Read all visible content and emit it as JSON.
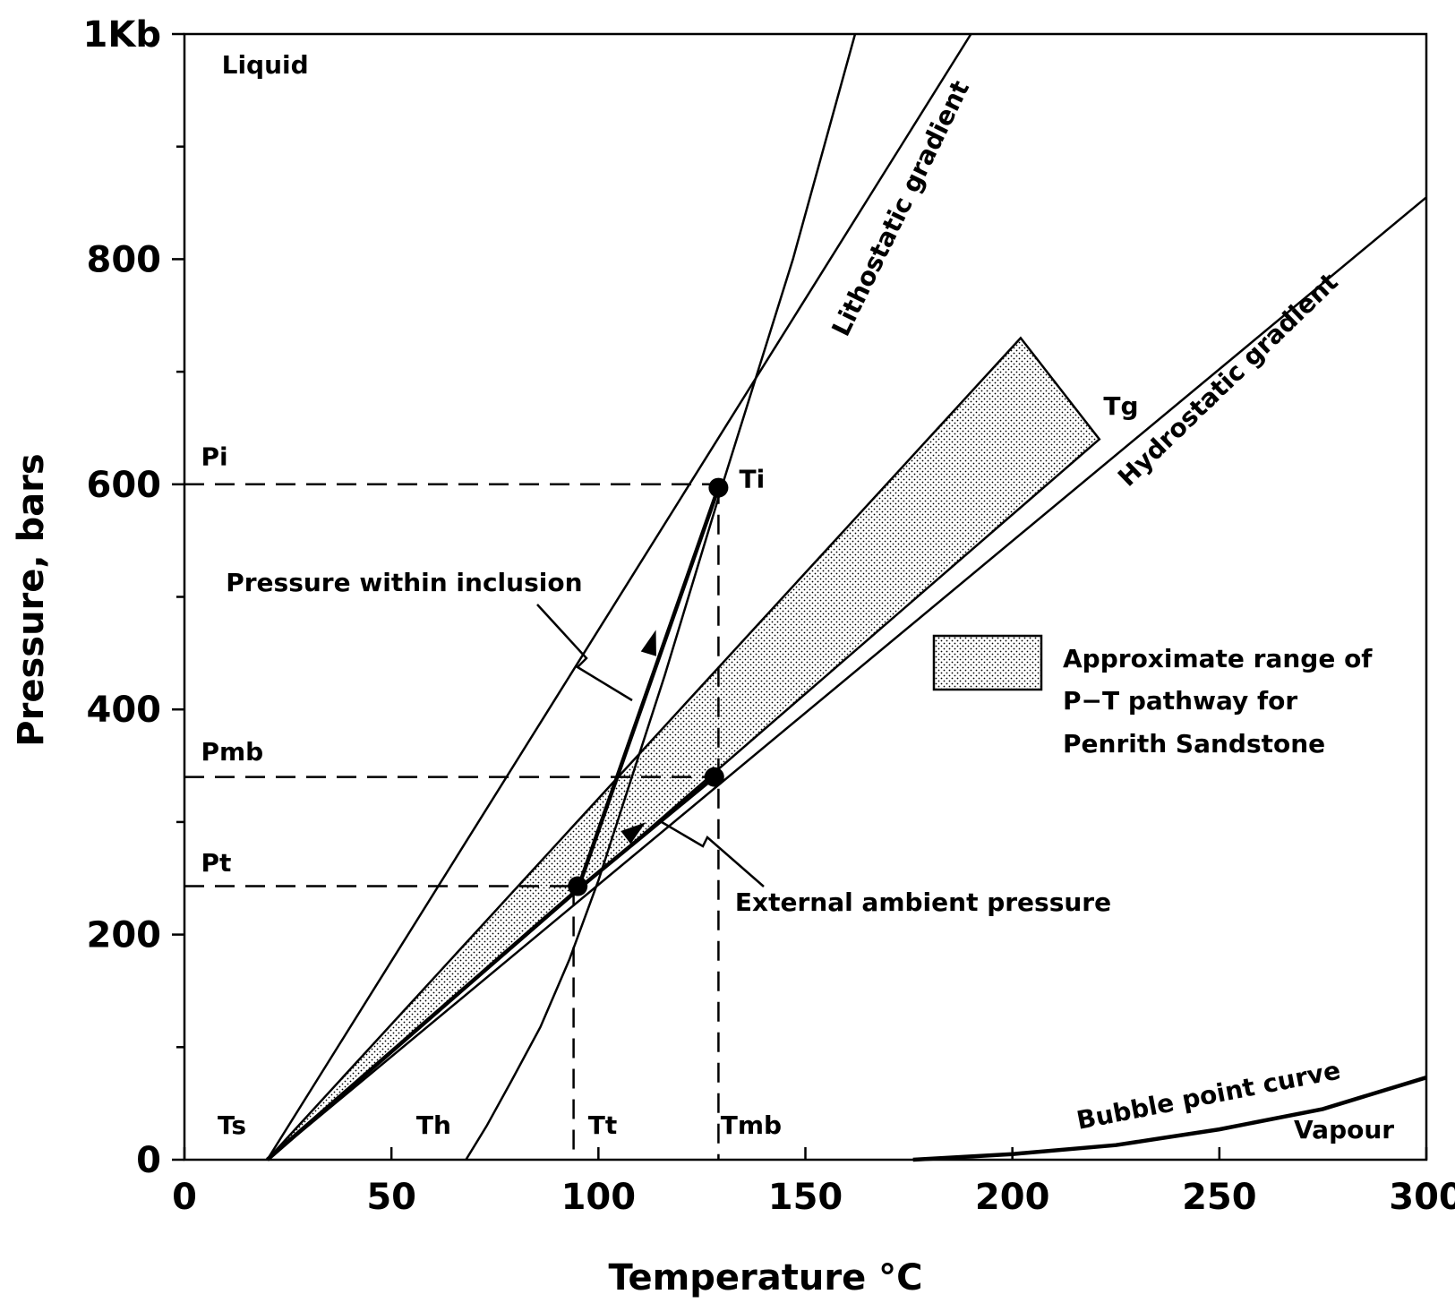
{
  "chart_data": {
    "type": "line",
    "xlabel": "Temperature",
    "xlabel_unit": "°C",
    "ylabel": "Pressure, bars",
    "xlim": [
      0,
      300
    ],
    "ylim": [
      0,
      1000
    ],
    "x_ticks": [
      0,
      50,
      100,
      150,
      200,
      250,
      300
    ],
    "x_tick_labels": [
      "0",
      "50",
      "100",
      "150",
      "200",
      "250",
      "300"
    ],
    "y_ticks": [
      0,
      200,
      400,
      600,
      800,
      1000
    ],
    "y_tick_labels": [
      "0",
      "200",
      "400",
      "600",
      "800",
      "1Kb"
    ],
    "y_minor_ticks": [
      100,
      300,
      500,
      700,
      900
    ],
    "grid": false,
    "series": [
      {
        "name": "Lithostatic gradient",
        "style": "thin",
        "points": [
          [
            20,
            0
          ],
          [
            190,
            1000
          ]
        ]
      },
      {
        "name": "Hydrostatic gradient",
        "style": "thin",
        "points": [
          [
            20,
            0
          ],
          [
            300,
            855
          ]
        ]
      },
      {
        "name": "",
        "style": "thin",
        "points": [
          [
            68,
            0
          ],
          [
            73,
            30
          ],
          [
            79,
            70
          ],
          [
            86,
            118
          ],
          [
            93,
            178
          ],
          [
            100,
            248
          ],
          [
            116,
            430
          ],
          [
            130,
            600
          ],
          [
            147,
            800
          ],
          [
            162,
            1000
          ]
        ]
      },
      {
        "name": "Bubble point curve",
        "style": "thick",
        "points": [
          [
            176,
            0
          ],
          [
            200,
            5
          ],
          [
            225,
            13
          ],
          [
            250,
            27
          ],
          [
            275,
            45
          ],
          [
            300,
            73
          ]
        ]
      },
      {
        "name": "Pressure within inclusion",
        "style": "thick",
        "points": [
          [
            95,
            240
          ],
          [
            129,
            597
          ]
        ]
      },
      {
        "name": "External ambient pressure",
        "style": "thick",
        "points": [
          [
            20,
            0
          ],
          [
            95,
            240
          ],
          [
            128,
            340
          ]
        ]
      }
    ],
    "band": {
      "name": "Approximate range of P-T pathway for Penrith Sandstone",
      "polygon": [
        [
          20,
          0
        ],
        [
          202,
          730
        ],
        [
          221,
          640
        ],
        [
          20,
          0
        ]
      ]
    },
    "points": [
      {
        "label": "Ti",
        "x": 129,
        "y": 597
      },
      {
        "label": "",
        "x": 128,
        "y": 340
      },
      {
        "label": "",
        "x": 95,
        "y": 243
      }
    ],
    "arrows": [
      {
        "x": 113,
        "y": 460,
        "dir": [
          1,
          12
        ]
      },
      {
        "x": 109,
        "y": 293,
        "dir": [
          1,
          2.8
        ]
      }
    ],
    "dashed_lines": [
      {
        "from": [
          0,
          600
        ],
        "to": [
          129,
          600
        ]
      },
      {
        "from": [
          0,
          340
        ],
        "to": [
          128,
          340
        ]
      },
      {
        "from": [
          0,
          243
        ],
        "to": [
          95,
          243
        ]
      },
      {
        "from": [
          129,
          600
        ],
        "to": [
          129,
          0
        ]
      },
      {
        "from": [
          94,
          243
        ],
        "to": [
          94,
          0
        ]
      }
    ],
    "annotations": [
      {
        "text": "Liquid",
        "x": 9,
        "y": 965
      },
      {
        "text": "Vapour",
        "x": 268,
        "y": 19
      },
      {
        "text": "Ts",
        "x": 8,
        "y": 23
      },
      {
        "text": "Th",
        "x": 56,
        "y": 23
      },
      {
        "text": "Tt",
        "x": 97.5,
        "y": 23
      },
      {
        "text": "Tmb",
        "x": 129.5,
        "y": 23
      },
      {
        "text": "Pi",
        "x": 4,
        "y": 617
      },
      {
        "text": "Pmb",
        "x": 4,
        "y": 355
      },
      {
        "text": "Pt",
        "x": 4,
        "y": 256
      },
      {
        "text": "Ti",
        "x": 134,
        "y": 597
      },
      {
        "text": "Tg",
        "x": 222,
        "y": 662
      },
      {
        "text": "Pressure within inclusion",
        "x": 10,
        "y": 505
      },
      {
        "text": "External ambient pressure",
        "x": 133,
        "y": 221
      },
      {
        "text": "Lithostatic gradient",
        "x": 160,
        "y": 730,
        "angle": -64
      },
      {
        "text": "Hydrostatic gradient",
        "x": 228,
        "y": 597,
        "angle": -44
      },
      {
        "text": "Bubble point curve",
        "x": 216,
        "y": 27,
        "angle": -11
      }
    ],
    "legend": {
      "position": "right",
      "lines": [
        "Approximate range of",
        "P−T pathway for",
        "Penrith Sandstone"
      ]
    }
  }
}
